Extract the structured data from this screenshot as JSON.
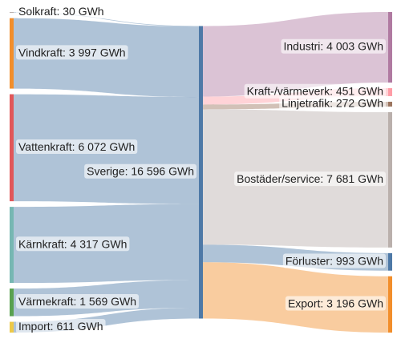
{
  "chart_data": {
    "type": "sankey",
    "sources": {
      "values": [
        30,
        3997,
        6072,
        4317,
        1569,
        611
      ],
      "value_labels": [
        "Solkraft: 30 GWh",
        "Vindkraft: 3 997 GWh",
        "Vattenkraft: 6 072 GWh",
        "Kärnkraft: 4 317 GWh",
        "Värmekraft: 1 569 GWh",
        "Import: 611 GWh"
      ],
      "colors": [
        "#bab0ac",
        "#f28e2b",
        "#e15759",
        "#76b7b2",
        "#59a14f",
        "#edc948"
      ]
    },
    "hub": {
      "value": 16596,
      "value_label": "Sverige: 16 596 GWh",
      "color": "#4e79a7"
    },
    "targets": {
      "values": [
        4003,
        451,
        272,
        7681,
        993,
        3196
      ],
      "value_labels": [
        "Industri: 4 003 GWh",
        "Kraft-/värmeverk: 451 GWh",
        "Linjetrafik: 272 GWh",
        "Bostäder/service: 7 681 GWh",
        "Förluster: 993 GWh",
        "Export: 3 196 GWh"
      ],
      "colors": [
        "#b07aa1",
        "#ff9da7",
        "#9c755f",
        "#bab0ac",
        "#4e79a7",
        "#f28e2b"
      ]
    }
  }
}
